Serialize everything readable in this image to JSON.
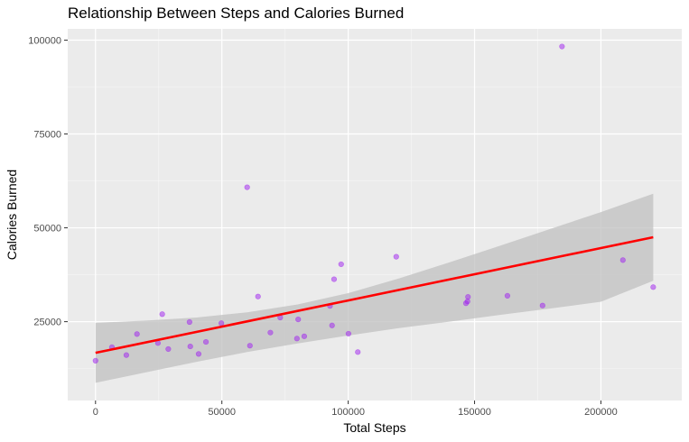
{
  "chart_data": {
    "type": "scatter",
    "title": "Relationship Between Steps and Calories Burned",
    "xlabel": "Total Steps",
    "ylabel": "Calories Burned",
    "xlim": [
      -11000,
      232000
    ],
    "ylim": [
      4000,
      103000
    ],
    "x_ticks": [
      0,
      50000,
      100000,
      150000,
      200000
    ],
    "x_tick_labels": [
      "0",
      "50000",
      "100000",
      "150000",
      "200000"
    ],
    "y_ticks": [
      25000,
      50000,
      75000,
      100000
    ],
    "y_tick_labels": [
      "25000",
      "50000",
      "75000",
      "100000"
    ],
    "grid": true,
    "point_color": "#a020f0",
    "fit_line_color": "#ff0000",
    "band_color": "#bebebe",
    "panel_color": "#ebebeb",
    "points": [
      {
        "x": 0,
        "y": 14600
      },
      {
        "x": 6500,
        "y": 18200
      },
      {
        "x": 12200,
        "y": 16100
      },
      {
        "x": 16400,
        "y": 21700
      },
      {
        "x": 24700,
        "y": 19300
      },
      {
        "x": 26400,
        "y": 27000
      },
      {
        "x": 28800,
        "y": 17700
      },
      {
        "x": 37200,
        "y": 24900
      },
      {
        "x": 37500,
        "y": 18400
      },
      {
        "x": 40800,
        "y": 16400
      },
      {
        "x": 43700,
        "y": 19600
      },
      {
        "x": 49800,
        "y": 24600
      },
      {
        "x": 60000,
        "y": 60800
      },
      {
        "x": 61100,
        "y": 18600
      },
      {
        "x": 64300,
        "y": 31700
      },
      {
        "x": 69200,
        "y": 22100
      },
      {
        "x": 73100,
        "y": 26100
      },
      {
        "x": 79700,
        "y": 20500
      },
      {
        "x": 80200,
        "y": 25600
      },
      {
        "x": 82600,
        "y": 21100
      },
      {
        "x": 92800,
        "y": 29200
      },
      {
        "x": 93600,
        "y": 24000
      },
      {
        "x": 94400,
        "y": 36300
      },
      {
        "x": 97200,
        "y": 40300
      },
      {
        "x": 100100,
        "y": 21800
      },
      {
        "x": 103800,
        "y": 16900
      },
      {
        "x": 119000,
        "y": 42300
      },
      {
        "x": 146600,
        "y": 29900
      },
      {
        "x": 147200,
        "y": 30400
      },
      {
        "x": 147400,
        "y": 31600
      },
      {
        "x": 163000,
        "y": 31900
      },
      {
        "x": 176900,
        "y": 29300
      },
      {
        "x": 184600,
        "y": 98300
      },
      {
        "x": 208700,
        "y": 41400
      },
      {
        "x": 220700,
        "y": 34200
      }
    ],
    "fit_line": {
      "x": [
        0,
        220700
      ],
      "y": [
        16700,
        47500
      ]
    },
    "confidence_band": {
      "x": [
        0,
        20000,
        40000,
        60000,
        80000,
        100000,
        120000,
        140000,
        160000,
        180000,
        200000,
        220700
      ],
      "upper": [
        24700,
        25300,
        26100,
        27500,
        29600,
        32600,
        36500,
        40800,
        45200,
        49700,
        54200,
        59100
      ],
      "lower": [
        8700,
        11500,
        14300,
        16900,
        19200,
        21300,
        23300,
        25000,
        26800,
        28500,
        30300,
        35900
      ]
    }
  }
}
